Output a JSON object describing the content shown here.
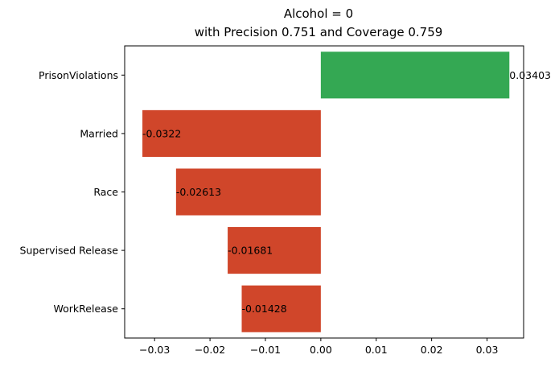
{
  "chart_data": {
    "type": "bar",
    "orientation": "horizontal",
    "title": "Alcohol = 0",
    "subtitle": "with Precision 0.751 and Coverage 0.759",
    "xlabel": "",
    "ylabel": "",
    "categories": [
      "PrisonViolations",
      "Married",
      "Race",
      "Supervised Release",
      "WorkRelease"
    ],
    "values": [
      0.03403,
      -0.0322,
      -0.02613,
      -0.01681,
      -0.01428
    ],
    "data_labels": [
      "0.03403",
      "-0.0322",
      "-0.02613",
      "-0.01681",
      "-0.01428"
    ],
    "xlim": [
      -0.0354,
      0.0366
    ],
    "xticks": [
      -0.03,
      -0.02,
      -0.01,
      0.0,
      0.01,
      0.02,
      0.03
    ],
    "xtick_labels": [
      "−0.03",
      "−0.02",
      "−0.01",
      "0.00",
      "0.01",
      "0.02",
      "0.03"
    ],
    "colors": {
      "positive": "#34a853",
      "negative": "#d0462a"
    },
    "grid": false,
    "legend": "none"
  }
}
